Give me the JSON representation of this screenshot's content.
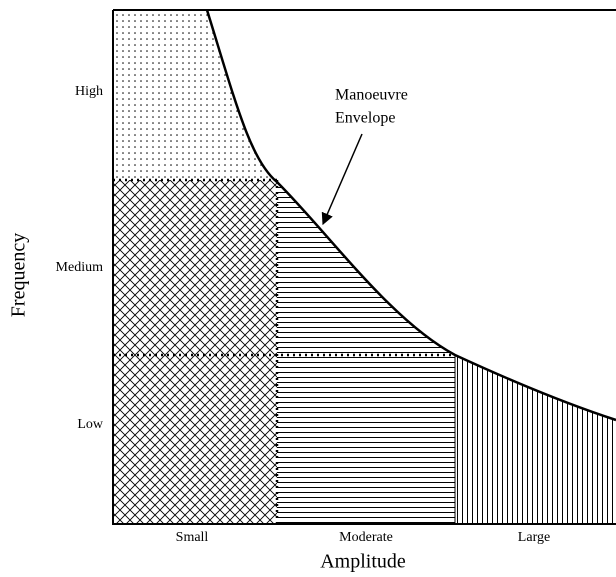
{
  "y_labels": [
    "High",
    "Medium",
    "Low"
  ],
  "y_axis_title": "Frequency",
  "x_labels": [
    "Small",
    "Moderate",
    "Large"
  ],
  "x_axis_title": "Amplitude",
  "annotation": {
    "lines": [
      "Manoeuvre",
      "Envelope"
    ]
  }
}
